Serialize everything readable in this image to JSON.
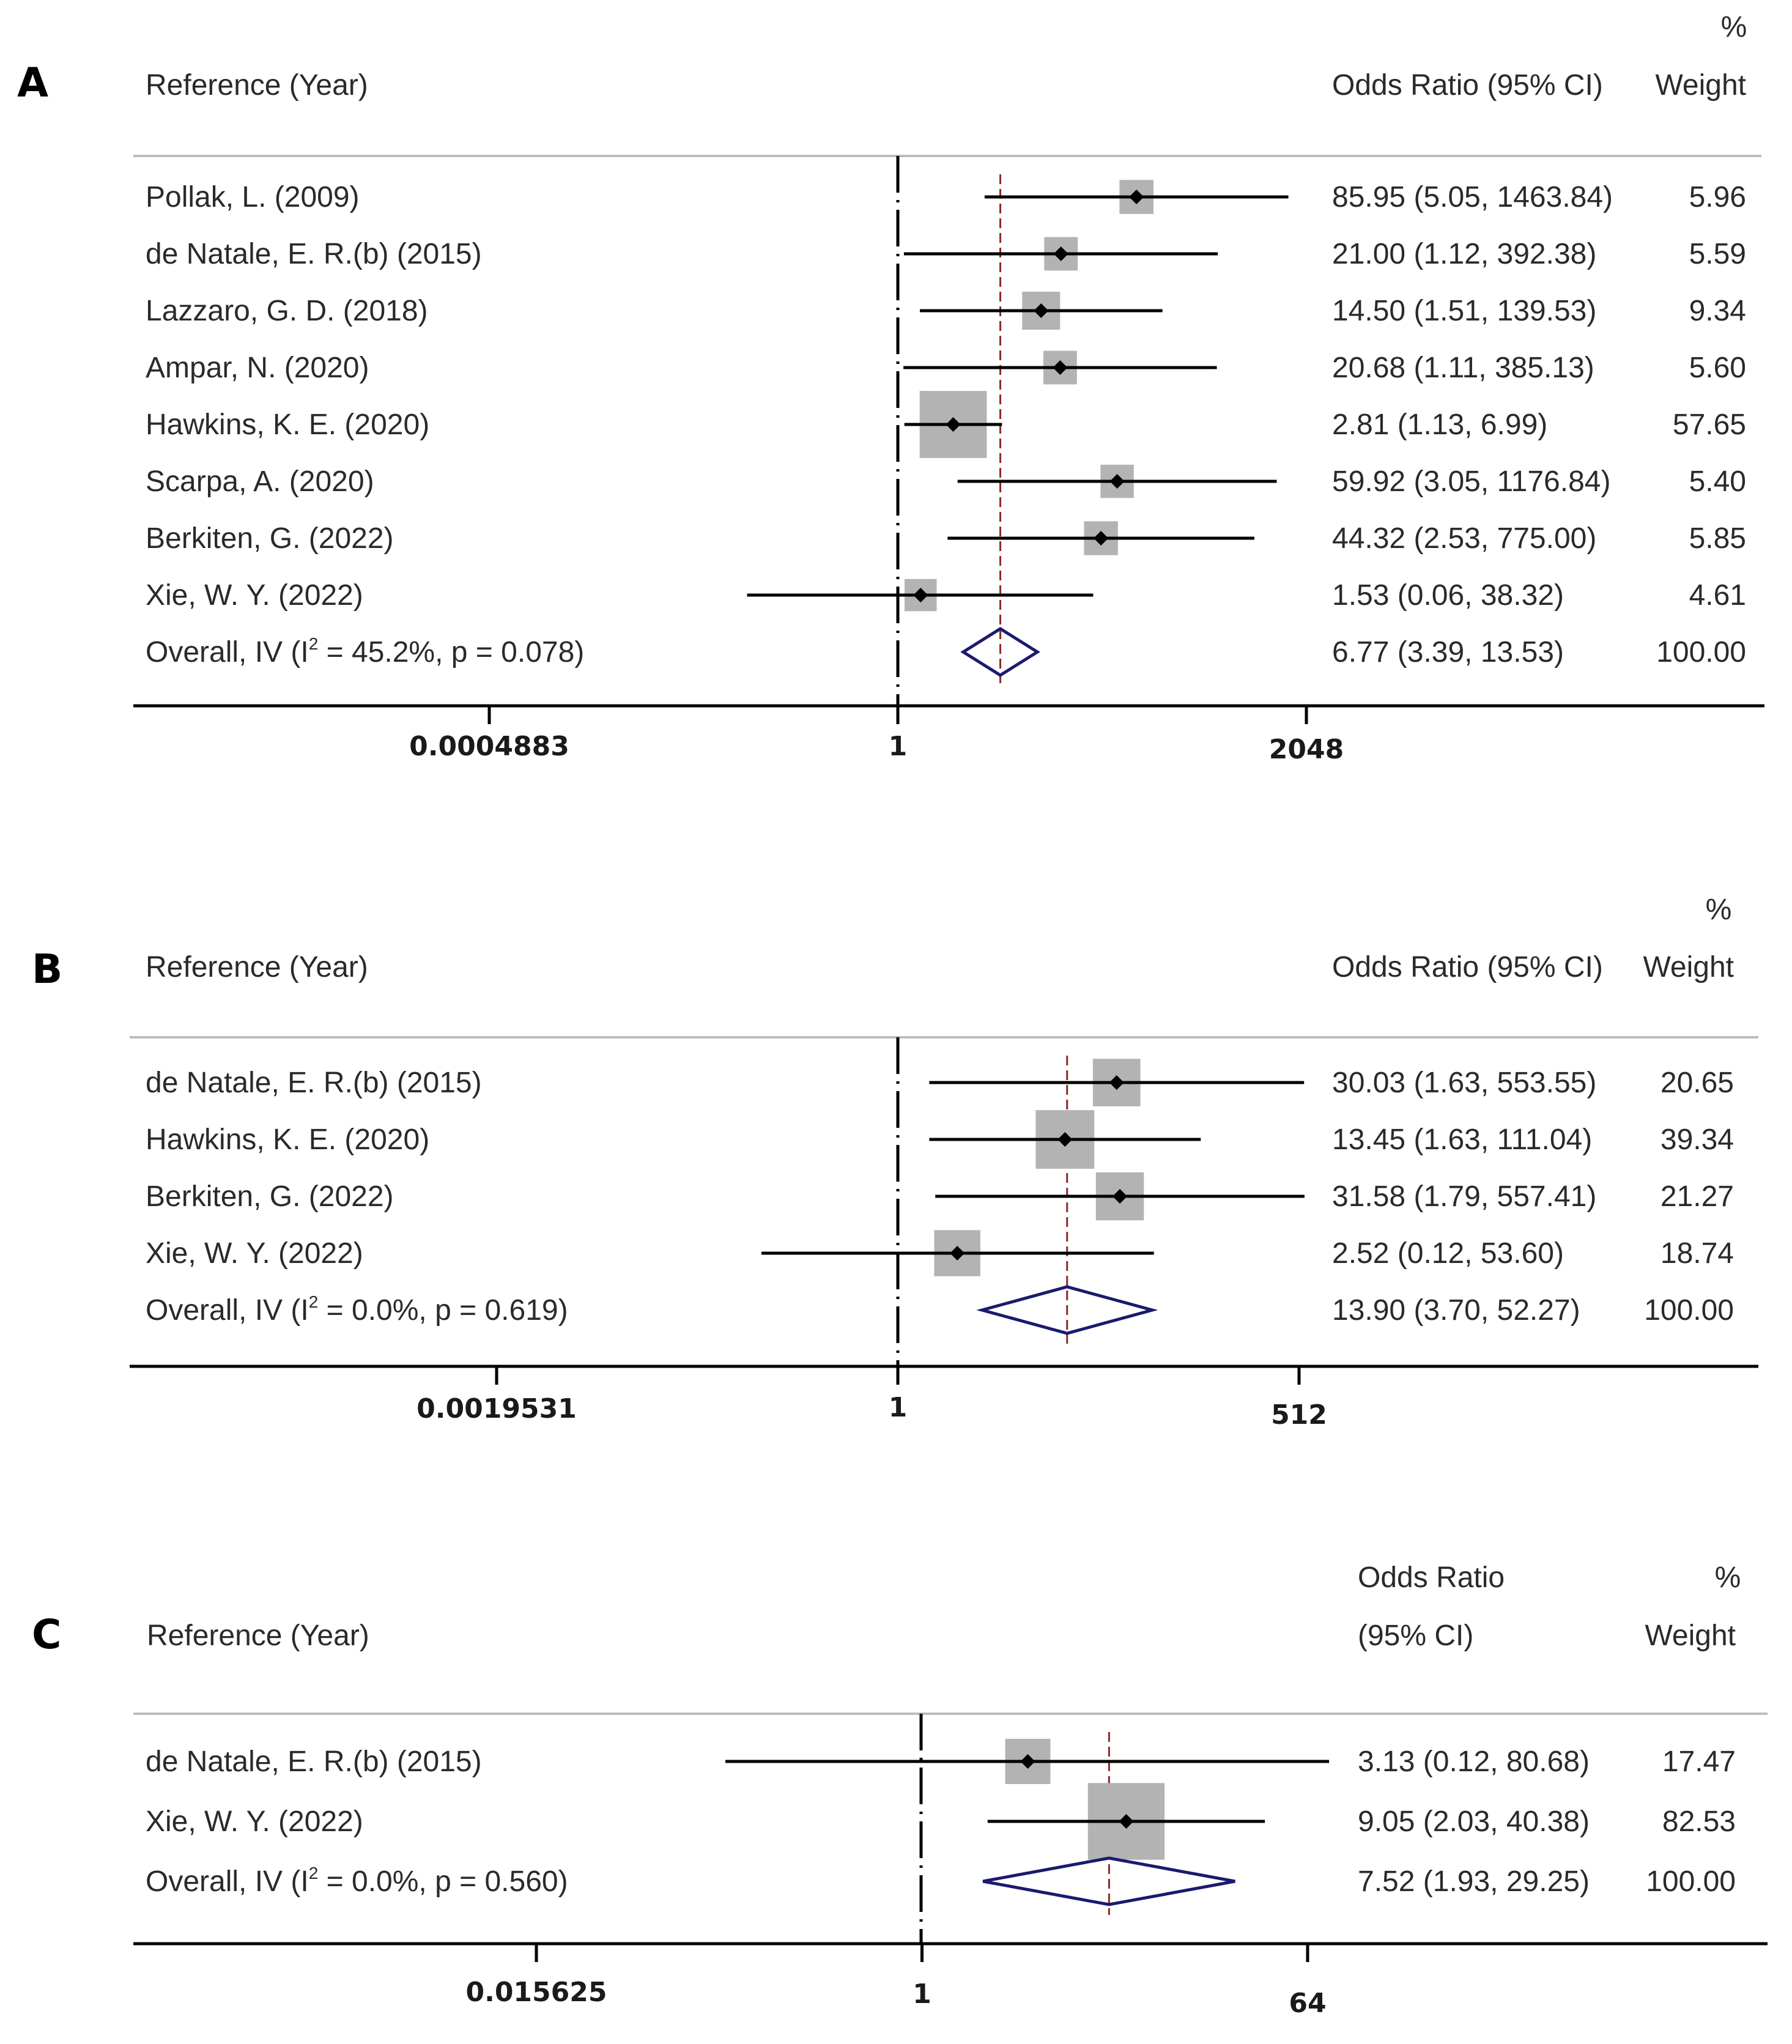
{
  "chart_data": [
    {
      "panel": "A",
      "type": "forest",
      "x_scale": "log2",
      "ticks": [
        "0.0004883",
        "1",
        "2048"
      ],
      "tick_values": [
        0.0004883,
        1,
        2048
      ],
      "header": {
        "percent": "%",
        "study": "Reference (Year)",
        "ci": "Odds Ratio (95% CI)",
        "weight": "Weight"
      },
      "overall_or": 6.77,
      "studies": [
        {
          "label": "Pollak, L. (2009)",
          "or": 85.95,
          "lo": 5.05,
          "hi": 1463.84,
          "ci_text": "85.95 (5.05, 1463.84)",
          "weight": 5.96,
          "weight_text": "5.96"
        },
        {
          "label": "de Natale, E. R.(b) (2015)",
          "or": 21.0,
          "lo": 1.12,
          "hi": 392.38,
          "ci_text": "21.00 (1.12, 392.38)",
          "weight": 5.59,
          "weight_text": "5.59"
        },
        {
          "label": "Lazzaro, G. D. (2018)",
          "or": 14.5,
          "lo": 1.51,
          "hi": 139.53,
          "ci_text": "14.50 (1.51, 139.53)",
          "weight": 9.34,
          "weight_text": "9.34"
        },
        {
          "label": "Ampar, N. (2020)",
          "or": 20.68,
          "lo": 1.11,
          "hi": 385.13,
          "ci_text": "20.68 (1.11, 385.13)",
          "weight": 5.6,
          "weight_text": "5.60"
        },
        {
          "label": "Hawkins, K. E. (2020)",
          "or": 2.81,
          "lo": 1.13,
          "hi": 6.99,
          "ci_text": "2.81 (1.13, 6.99)",
          "weight": 57.65,
          "weight_text": "57.65"
        },
        {
          "label": "Scarpa, A. (2020)",
          "or": 59.92,
          "lo": 3.05,
          "hi": 1176.84,
          "ci_text": "59.92 (3.05, 1176.84)",
          "weight": 5.4,
          "weight_text": "5.40"
        },
        {
          "label": "Berkiten, G. (2022)",
          "or": 44.32,
          "lo": 2.53,
          "hi": 775.0,
          "ci_text": "44.32 (2.53, 775.00)",
          "weight": 5.85,
          "weight_text": "5.85"
        },
        {
          "label": "Xie, W. Y. (2022)",
          "or": 1.53,
          "lo": 0.06,
          "hi": 38.32,
          "ci_text": "1.53 (0.06, 38.32)",
          "weight": 4.61,
          "weight_text": "4.61"
        }
      ],
      "overall": {
        "label_main": "Overall, IV (I",
        "label_sup": "2",
        "label_rest": " = 45.2%, p = 0.078)",
        "or": 6.77,
        "lo": 3.39,
        "hi": 13.53,
        "ci_text": "6.77 (3.39, 13.53)",
        "weight_text": "100.00"
      }
    },
    {
      "panel": "B",
      "type": "forest",
      "x_scale": "log2",
      "ticks": [
        "0.0019531",
        "1",
        "512"
      ],
      "tick_values": [
        0.0019531,
        1,
        512
      ],
      "header": {
        "percent": "%",
        "study": "Reference (Year)",
        "ci": "Odds Ratio (95% CI)",
        "weight": "Weight"
      },
      "overall_or": 13.9,
      "studies": [
        {
          "label": "de Natale, E. R.(b) (2015)",
          "or": 30.03,
          "lo": 1.63,
          "hi": 553.55,
          "ci_text": "30.03 (1.63, 553.55)",
          "weight": 20.65,
          "weight_text": "20.65"
        },
        {
          "label": "Hawkins, K. E. (2020)",
          "or": 13.45,
          "lo": 1.63,
          "hi": 111.04,
          "ci_text": "13.45 (1.63, 111.04)",
          "weight": 39.34,
          "weight_text": "39.34"
        },
        {
          "label": "Berkiten, G. (2022)",
          "or": 31.58,
          "lo": 1.79,
          "hi": 557.41,
          "ci_text": "31.58 (1.79, 557.41)",
          "weight": 21.27,
          "weight_text": "21.27"
        },
        {
          "label": "Xie, W. Y. (2022)",
          "or": 2.52,
          "lo": 0.12,
          "hi": 53.6,
          "ci_text": "2.52 (0.12, 53.60)",
          "weight": 18.74,
          "weight_text": "18.74"
        }
      ],
      "overall": {
        "label_main": "Overall, IV (I",
        "label_sup": "2",
        "label_rest": " = 0.0%, p = 0.619)",
        "or": 13.9,
        "lo": 3.7,
        "hi": 52.27,
        "ci_text": "13.90 (3.70, 52.27)",
        "weight_text": "100.00"
      }
    },
    {
      "panel": "C",
      "type": "forest",
      "x_scale": "log2",
      "ticks": [
        "0.015625",
        "1",
        "64"
      ],
      "tick_values": [
        0.015625,
        1,
        64
      ],
      "header": {
        "percent": "%",
        "study": "Reference (Year)",
        "ci_line1": "Odds Ratio",
        "ci_line2": "(95% CI)",
        "weight": "Weight"
      },
      "overall_or": 7.52,
      "studies": [
        {
          "label": "de Natale, E. R.(b) (2015)",
          "or": 3.13,
          "lo": 0.12,
          "hi": 80.68,
          "ci_text": "3.13 (0.12, 80.68)",
          "weight": 17.47,
          "weight_text": "17.47"
        },
        {
          "label": "Xie, W. Y. (2022)",
          "or": 9.05,
          "lo": 2.03,
          "hi": 40.38,
          "ci_text": "9.05 (2.03, 40.38)",
          "weight": 82.53,
          "weight_text": "82.53"
        }
      ],
      "overall": {
        "label_main": "Overall, IV (I",
        "label_sup": "2",
        "label_rest": " = 0.0%, p = 0.560)",
        "or": 7.52,
        "lo": 1.93,
        "hi": 29.25,
        "ci_text": "7.52 (1.93, 29.25)",
        "weight_text": "100.00"
      }
    }
  ],
  "colors": {
    "ci_line": "#000000",
    "point": "#000000",
    "weight_box": "#b3b3b3",
    "diamond": "#1a1a6e",
    "overall_line": "#8b2a2a",
    "axis": "#000000",
    "divider": "#bdbdbd"
  }
}
